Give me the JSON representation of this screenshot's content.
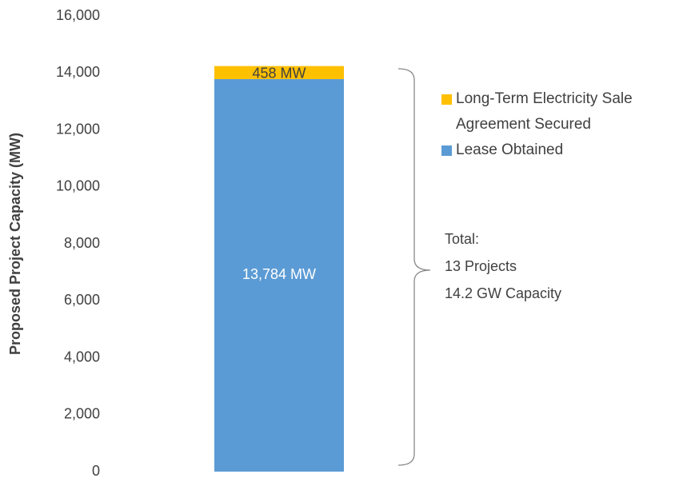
{
  "chart_data": {
    "type": "bar",
    "stacked": true,
    "categories": [
      null
    ],
    "ylabel": "Proposed Project Capacity (MW)",
    "series": [
      {
        "name": "Lease Obtained",
        "color": "#5b9bd5",
        "values": [
          13784
        ],
        "value_labels": [
          "13,784 MW"
        ]
      },
      {
        "name": "Long-Term Electricity Sale Agreement Secured",
        "color": "#ffc000",
        "values": [
          458
        ],
        "value_labels": [
          "458 MW"
        ]
      }
    ],
    "ylim": [
      0,
      16000
    ],
    "yticks": [
      0,
      {
        "value": 2000,
        "label": "2,000"
      },
      {
        "value": 4000,
        "label": "4,000"
      },
      {
        "value": 6000,
        "label": "6,000"
      },
      {
        "value": 8000,
        "label": "8,000"
      },
      {
        "value": 10000,
        "label": "10,000"
      },
      {
        "value": 12000,
        "label": "12,000"
      },
      {
        "value": 14000,
        "label": "14,000"
      },
      {
        "value": 16000,
        "label": "16,000"
      }
    ],
    "annotations": [
      "Total:",
      "13 Projects",
      "14.2 GW Capacity"
    ],
    "grid": false
  }
}
